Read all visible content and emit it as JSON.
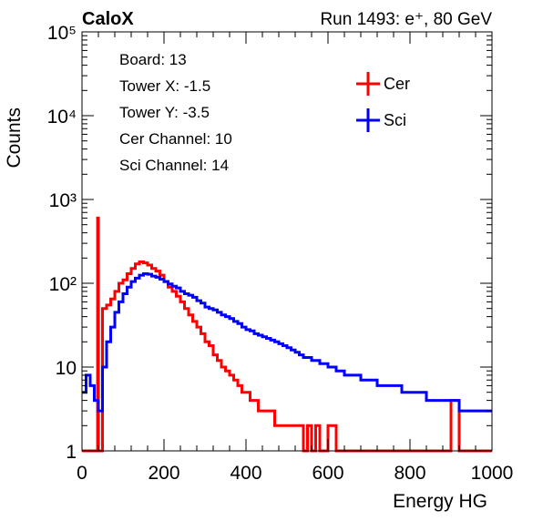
{
  "chart_data": {
    "type": "line",
    "title_left": "CaloX",
    "title_right": "Run 1493: e⁺, 80 GeV",
    "xlabel": "Energy HG",
    "ylabel": "Counts",
    "xlim": [
      0,
      1000
    ],
    "ylim": [
      1,
      100000
    ],
    "y_scale": "log",
    "x_ticks": [
      0,
      200,
      400,
      600,
      800,
      1000
    ],
    "x_tick_labels": [
      "0",
      "200",
      "400",
      "600",
      "800",
      "1000"
    ],
    "y_ticks": [
      1,
      10,
      100,
      1000,
      10000,
      100000
    ],
    "y_tick_labels": [
      "1",
      "10",
      "10²",
      "10³",
      "10⁴",
      "10⁵"
    ],
    "grid": false,
    "legend_position": "top-right",
    "info_text": [
      "Board: 13",
      "Tower X: -1.5",
      "Tower Y: -3.5",
      "Cer Channel: 10",
      "Sci Channel: 14"
    ],
    "series": [
      {
        "name": "Cer",
        "color": "#ff0000",
        "x": [
          0,
          20,
          30,
          36,
          38,
          40,
          42,
          50,
          60,
          70,
          80,
          90,
          100,
          110,
          120,
          130,
          140,
          150,
          160,
          170,
          180,
          190,
          200,
          210,
          220,
          230,
          240,
          250,
          260,
          270,
          280,
          290,
          300,
          310,
          320,
          330,
          340,
          350,
          360,
          370,
          380,
          390,
          400,
          410,
          420,
          430,
          440,
          450,
          460,
          470,
          480,
          490,
          500,
          510,
          520,
          530,
          540,
          550,
          560,
          570,
          580,
          590,
          600,
          620,
          640,
          660,
          680,
          700,
          720,
          740,
          760,
          780,
          800,
          820,
          840,
          860,
          880,
          900,
          920,
          940,
          960,
          980
        ],
        "y": [
          1,
          1,
          1,
          1,
          600,
          1,
          1,
          50,
          55,
          65,
          80,
          100,
          110,
          130,
          150,
          170,
          180,
          175,
          165,
          150,
          140,
          125,
          105,
          90,
          80,
          70,
          60,
          50,
          42,
          35,
          30,
          25,
          20,
          18,
          14,
          12,
          10,
          9,
          8,
          7,
          6,
          5,
          5,
          4,
          4,
          3,
          3,
          3,
          3,
          2,
          2,
          2,
          2,
          2,
          2,
          2,
          1,
          2,
          1,
          2,
          1,
          1,
          2,
          1,
          1,
          1,
          1,
          1,
          1,
          1,
          1,
          1,
          1,
          1,
          1,
          1,
          1,
          4,
          1,
          1,
          1,
          1
        ]
      },
      {
        "name": "Sci",
        "color": "#0000ff",
        "x": [
          0,
          10,
          20,
          30,
          40,
          50,
          60,
          70,
          80,
          90,
          100,
          110,
          120,
          130,
          140,
          150,
          160,
          170,
          180,
          190,
          200,
          210,
          220,
          230,
          240,
          250,
          260,
          270,
          280,
          290,
          300,
          310,
          320,
          330,
          340,
          350,
          360,
          370,
          380,
          390,
          400,
          410,
          420,
          430,
          440,
          450,
          460,
          470,
          480,
          490,
          500,
          510,
          520,
          530,
          540,
          550,
          560,
          570,
          580,
          590,
          600,
          620,
          640,
          660,
          680,
          700,
          720,
          740,
          760,
          780,
          800,
          820,
          840,
          860,
          880,
          900,
          920,
          940,
          960,
          980,
          1000
        ],
        "y": [
          5,
          8,
          6,
          4,
          3,
          10,
          20,
          30,
          45,
          60,
          75,
          90,
          105,
          115,
          125,
          130,
          128,
          122,
          118,
          112,
          105,
          98,
          92,
          88,
          80,
          75,
          72,
          68,
          62,
          58,
          52,
          50,
          48,
          45,
          42,
          40,
          38,
          35,
          33,
          30,
          28,
          27,
          25,
          24,
          23,
          22,
          21,
          20,
          19,
          18,
          17,
          16,
          15,
          14,
          13,
          13,
          12,
          12,
          11,
          11,
          10,
          9,
          8,
          8,
          7,
          7,
          6,
          6,
          6,
          5,
          5,
          5,
          4,
          4,
          4,
          4,
          3,
          3,
          3,
          3,
          3
        ]
      }
    ]
  }
}
